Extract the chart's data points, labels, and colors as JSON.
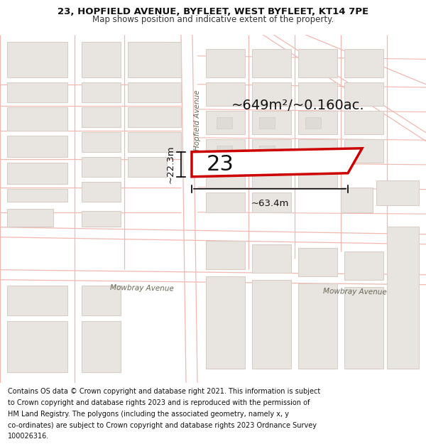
{
  "title_line1": "23, HOPFIELD AVENUE, BYFLEET, WEST BYFLEET, KT14 7PE",
  "title_line2": "Map shows position and indicative extent of the property.",
  "footer_lines": [
    "Contains OS data © Crown copyright and database right 2021. This information is subject",
    "to Crown copyright and database rights 2023 and is reproduced with the permission of",
    "HM Land Registry. The polygons (including the associated geometry, namely x, y",
    "co-ordinates) are subject to Crown copyright and database rights 2023 Ordnance Survey",
    "100026316."
  ],
  "map_bg": "#ffffff",
  "road_line_color": "#f0b8b0",
  "building_fill": "#e8e4e0",
  "building_stroke": "#d8d0c8",
  "property_fill": "#ffffff",
  "property_stroke": "#cc0000",
  "area_text": "~649m²/~0.160ac.",
  "width_label": "~63.4m",
  "height_label": "~22.3m",
  "number_label": "23",
  "street_hopfield": "Hopfield Avenue",
  "street_mowbray1": "Mowbray Avenue",
  "street_mowbray2": "Mowbray Avenue",
  "title_fontsize": 9.5,
  "subtitle_fontsize": 8.5,
  "footer_fontsize": 7.0,
  "area_fontsize": 14,
  "dim_fontsize": 9.5,
  "number_fontsize": 22,
  "street_fontsize": 7.5
}
